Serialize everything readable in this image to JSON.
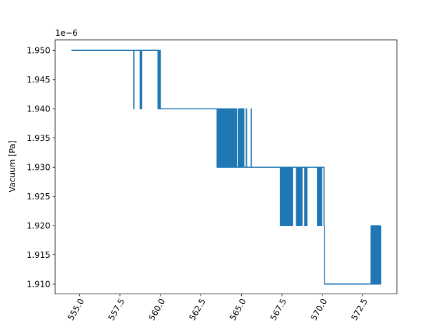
{
  "chart_data": {
    "type": "line",
    "title": "",
    "xlabel": "",
    "ylabel": "Vacuum [Pa]",
    "y_offset_text": "1e−6",
    "xlim": [
      553.5,
      574.6
    ],
    "ylim": [
      1.9083,
      1.9518
    ],
    "x_ticks": [
      555.0,
      557.5,
      560.0,
      562.5,
      565.0,
      567.5,
      570.0,
      572.5
    ],
    "x_tick_labels": [
      "555.0",
      "557.5",
      "560.0",
      "562.5",
      "565.0",
      "567.5",
      "570.0",
      "572.5"
    ],
    "y_ticks": [
      1.91,
      1.915,
      1.92,
      1.925,
      1.93,
      1.935,
      1.94,
      1.945,
      1.95
    ],
    "y_tick_labels": [
      "1.910",
      "1.915",
      "1.920",
      "1.925",
      "1.930",
      "1.935",
      "1.940",
      "1.945",
      "1.950"
    ],
    "grid": false,
    "legend": "none",
    "color": "#1f77b4",
    "series": [
      {
        "x": [
          554.5,
          558.35,
          558.35,
          558.37,
          558.37,
          558.75,
          558.75,
          558.77,
          558.77,
          558.82,
          558.82,
          558.84,
          558.84,
          559.85,
          559.85,
          559.87,
          559.87,
          559.9,
          559.9,
          559.92,
          559.92,
          559.95,
          559.95,
          559.98,
          559.98,
          560.0,
          560.0,
          563.5,
          563.5,
          563.55,
          563.55,
          563.6,
          563.6,
          563.65,
          563.65,
          563.7,
          563.7,
          563.75,
          563.75,
          563.8,
          563.8,
          563.85,
          563.85,
          563.9,
          563.9,
          563.95,
          563.95,
          564.0,
          564.0,
          564.05,
          564.05,
          564.1,
          564.1,
          564.15,
          564.15,
          564.2,
          564.2,
          564.25,
          564.25,
          564.3,
          564.3,
          564.35,
          564.35,
          564.4,
          564.4,
          564.45,
          564.45,
          564.5,
          564.5,
          564.55,
          564.55,
          564.6,
          564.6,
          564.65,
          564.65,
          564.7,
          564.7,
          564.8,
          564.8,
          564.85,
          564.85,
          564.9,
          564.9,
          564.95,
          564.95,
          565.0,
          565.0,
          565.05,
          565.05,
          565.1,
          565.1,
          565.15,
          565.15,
          565.3,
          565.3,
          565.32,
          565.32,
          565.6,
          565.6,
          565.62,
          565.62,
          567.4,
          567.4,
          567.45,
          567.45,
          567.5,
          567.5,
          567.55,
          567.55,
          567.6,
          567.6,
          567.65,
          567.65,
          567.7,
          567.7,
          567.75,
          567.75,
          567.8,
          567.8,
          567.85,
          567.85,
          567.9,
          567.9,
          567.95,
          567.95,
          568.0,
          568.0,
          568.05,
          568.05,
          568.1,
          568.1,
          568.15,
          568.15,
          568.4,
          568.4,
          568.45,
          568.45,
          568.5,
          568.5,
          568.55,
          568.55,
          568.6,
          568.6,
          568.65,
          568.65,
          568.7,
          568.7,
          568.75,
          568.75,
          568.9,
          568.9,
          568.95,
          568.95,
          569.0,
          569.0,
          569.05,
          569.05,
          569.7,
          569.7,
          569.75,
          569.75,
          569.8,
          569.8,
          569.85,
          569.85,
          569.9,
          569.9,
          569.95,
          569.95,
          570.1,
          570.1,
          570.12,
          570.12,
          573.0,
          573.0,
          573.05,
          573.05,
          573.1,
          573.1,
          573.15,
          573.15,
          573.2,
          573.2,
          573.25,
          573.25,
          573.3,
          573.3,
          573.35,
          573.35,
          573.4,
          573.4,
          573.45,
          573.45,
          573.5,
          573.5,
          573.55,
          573.55,
          573.6,
          573.6
        ],
        "y": [
          1.95,
          1.95,
          1.94,
          1.94,
          1.95,
          1.95,
          1.94,
          1.94,
          1.95,
          1.95,
          1.94,
          1.94,
          1.95,
          1.95,
          1.94,
          1.94,
          1.95,
          1.95,
          1.94,
          1.94,
          1.95,
          1.95,
          1.94,
          1.94,
          1.95,
          1.95,
          1.94,
          1.94,
          1.93,
          1.93,
          1.94,
          1.94,
          1.93,
          1.93,
          1.94,
          1.94,
          1.93,
          1.93,
          1.94,
          1.94,
          1.93,
          1.93,
          1.94,
          1.94,
          1.93,
          1.93,
          1.94,
          1.94,
          1.93,
          1.93,
          1.94,
          1.94,
          1.93,
          1.93,
          1.94,
          1.94,
          1.93,
          1.93,
          1.94,
          1.94,
          1.93,
          1.93,
          1.94,
          1.94,
          1.93,
          1.93,
          1.94,
          1.94,
          1.93,
          1.93,
          1.94,
          1.94,
          1.93,
          1.93,
          1.94,
          1.94,
          1.93,
          1.93,
          1.94,
          1.94,
          1.93,
          1.93,
          1.94,
          1.94,
          1.93,
          1.93,
          1.94,
          1.94,
          1.93,
          1.93,
          1.94,
          1.94,
          1.93,
          1.93,
          1.94,
          1.94,
          1.93,
          1.93,
          1.94,
          1.94,
          1.93,
          1.93,
          1.92,
          1.92,
          1.93,
          1.93,
          1.92,
          1.92,
          1.93,
          1.93,
          1.92,
          1.92,
          1.93,
          1.93,
          1.92,
          1.92,
          1.93,
          1.93,
          1.92,
          1.92,
          1.93,
          1.93,
          1.92,
          1.92,
          1.93,
          1.93,
          1.92,
          1.92,
          1.93,
          1.93,
          1.92,
          1.92,
          1.93,
          1.93,
          1.92,
          1.92,
          1.93,
          1.93,
          1.92,
          1.92,
          1.93,
          1.93,
          1.92,
          1.92,
          1.93,
          1.93,
          1.92,
          1.92,
          1.93,
          1.93,
          1.92,
          1.92,
          1.93,
          1.93,
          1.92,
          1.92,
          1.93,
          1.93,
          1.92,
          1.92,
          1.93,
          1.93,
          1.92,
          1.92,
          1.93,
          1.93,
          1.92,
          1.92,
          1.93,
          1.93,
          1.92,
          1.92,
          1.91,
          1.91,
          1.92,
          1.92,
          1.91,
          1.91,
          1.92,
          1.92,
          1.91,
          1.91,
          1.92,
          1.92,
          1.91,
          1.91,
          1.92,
          1.92,
          1.91,
          1.91,
          1.92,
          1.92,
          1.91,
          1.91,
          1.92,
          1.92,
          1.91,
          1.91,
          1.92
        ]
      }
    ]
  }
}
